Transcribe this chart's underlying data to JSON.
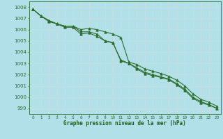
{
  "background_color": "#b2e0e8",
  "grid_color": "#c8dde0",
  "line_color": "#2d6e2d",
  "marker_color": "#2d6e2d",
  "xlabel": "Graphe pression niveau de la mer (hPa)",
  "xlabel_color": "#1a5c1a",
  "tick_color": "#2d6e2d",
  "ylim": [
    998.5,
    1008.5
  ],
  "xlim": [
    -0.5,
    23.5
  ],
  "yticks": [
    999,
    1000,
    1001,
    1002,
    1003,
    1004,
    1005,
    1006,
    1007,
    1008
  ],
  "xticks": [
    0,
    1,
    2,
    3,
    4,
    5,
    6,
    7,
    8,
    9,
    10,
    11,
    12,
    13,
    14,
    15,
    16,
    17,
    18,
    19,
    20,
    21,
    22,
    23
  ],
  "series": [
    [
      1007.8,
      1007.2,
      1006.8,
      1006.5,
      1006.3,
      1006.3,
      1006.0,
      1006.1,
      1006.0,
      1005.8,
      1005.6,
      1005.3,
      1003.1,
      1002.9,
      1002.5,
      1002.3,
      1002.1,
      1001.85,
      1001.5,
      1001.0,
      1000.3,
      999.8,
      999.55,
      999.2
    ],
    [
      1007.8,
      1007.2,
      1006.8,
      1006.5,
      1006.3,
      1006.3,
      1005.8,
      1005.8,
      1005.6,
      1005.0,
      1004.85,
      1003.2,
      1003.0,
      1002.6,
      1002.2,
      1002.0,
      1001.8,
      1001.6,
      1001.2,
      1000.7,
      1000.0,
      999.6,
      999.35,
      999.0
    ],
    [
      1007.8,
      1007.2,
      1006.7,
      1006.5,
      1006.2,
      1006.2,
      1005.6,
      1005.7,
      1005.4,
      1005.0,
      1004.8,
      1003.3,
      1003.0,
      1002.5,
      1002.1,
      1001.9,
      1001.75,
      1001.55,
      1001.1,
      1000.6,
      999.9,
      999.5,
      999.3,
      999.0
    ]
  ],
  "marker": "^",
  "markersize": 2.5,
  "linewidth": 0.8,
  "figsize": [
    3.2,
    2.0
  ],
  "dpi": 100
}
